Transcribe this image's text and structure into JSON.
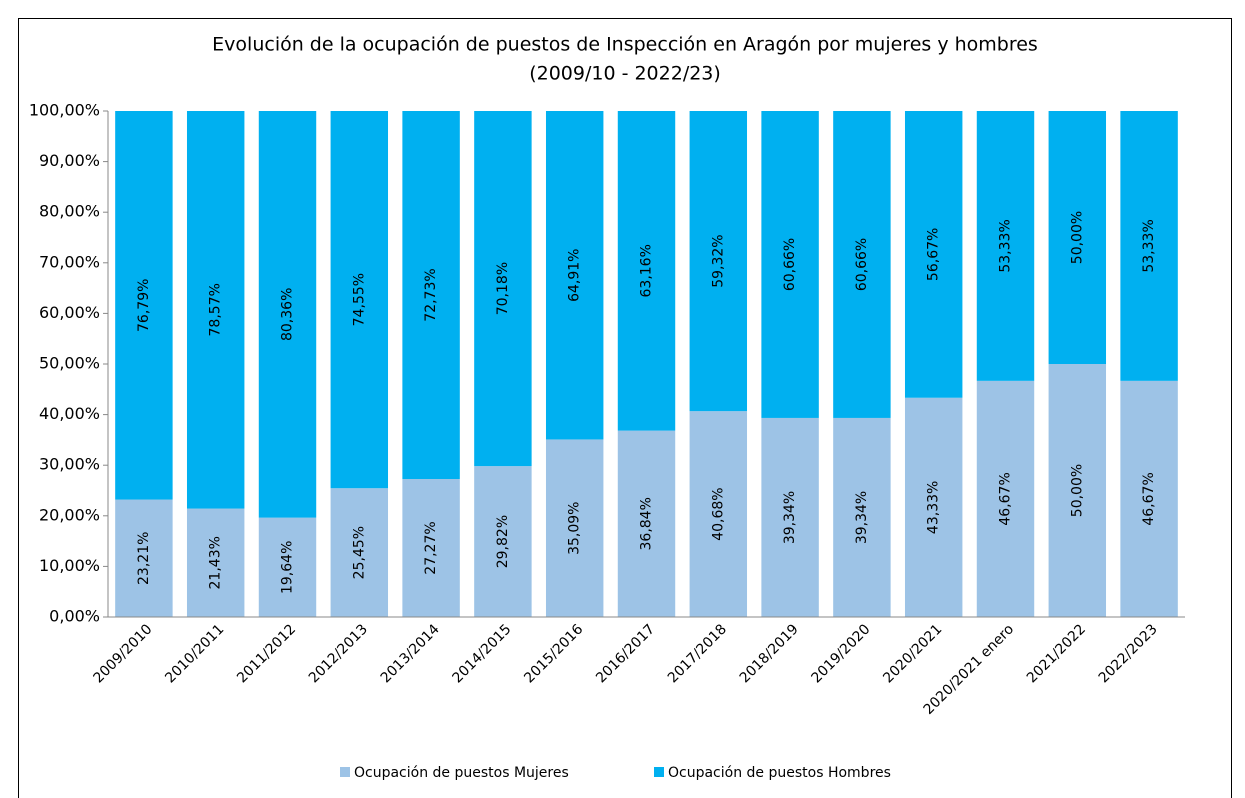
{
  "chart_data": {
    "type": "stacked_bar",
    "title": "Evolución de la ocupación de puestos de Inspección en Aragón por mujeres y hombres",
    "subtitle": "(2009/10 - 2022/23)",
    "categories": [
      "2009/2010",
      "2010/2011",
      "2011/2012",
      "2012/2013",
      "2013/2014",
      "2014/2015",
      "2015/2016",
      "2016/2017",
      "2017/2018",
      "2018/2019",
      "2019/2020",
      "2020/2021",
      "2020/2021 enero",
      "2021/2022",
      "2022/2023"
    ],
    "series": [
      {
        "name": "Ocupación de puestos Mujeres",
        "color": "#9dc3e6",
        "values": [
          23.21,
          21.43,
          19.64,
          25.45,
          27.27,
          29.82,
          35.09,
          36.84,
          40.68,
          39.34,
          39.34,
          43.33,
          46.67,
          50.0,
          46.67
        ],
        "value_labels": [
          "23,21%",
          "21,43%",
          "19,64%",
          "25,45%",
          "27,27%",
          "29,82%",
          "35,09%",
          "36,84%",
          "40,68%",
          "39,34%",
          "39,34%",
          "43,33%",
          "46,67%",
          "50,00%",
          "46,67%"
        ]
      },
      {
        "name": "Ocupación de puestos Hombres",
        "color": "#00b0f0",
        "values": [
          76.79,
          78.57,
          80.36,
          74.55,
          72.73,
          70.18,
          64.91,
          63.16,
          59.32,
          60.66,
          60.66,
          56.67,
          53.33,
          50.0,
          53.33
        ],
        "value_labels": [
          "76,79%",
          "78,57%",
          "80,36%",
          "74,55%",
          "72,73%",
          "70,18%",
          "64,91%",
          "63,16%",
          "59,32%",
          "60,66%",
          "60,66%",
          "56,67%",
          "53,33%",
          "50,00%",
          "53,33%"
        ]
      }
    ],
    "ylim": [
      0,
      100
    ],
    "yticks": [
      {
        "value": 0,
        "label": "0,00%"
      },
      {
        "value": 10,
        "label": "10,00%"
      },
      {
        "value": 20,
        "label": "20,00%"
      },
      {
        "value": 30,
        "label": "30,00%"
      },
      {
        "value": 40,
        "label": "40,00%"
      },
      {
        "value": 50,
        "label": "50,00%"
      },
      {
        "value": 60,
        "label": "60,00%"
      },
      {
        "value": 70,
        "label": "70,00%"
      },
      {
        "value": 80,
        "label": "80,00%"
      },
      {
        "value": 90,
        "label": "90,00%"
      },
      {
        "value": 100,
        "label": "100,00%"
      }
    ],
    "grid": false,
    "legend": "bottom"
  }
}
